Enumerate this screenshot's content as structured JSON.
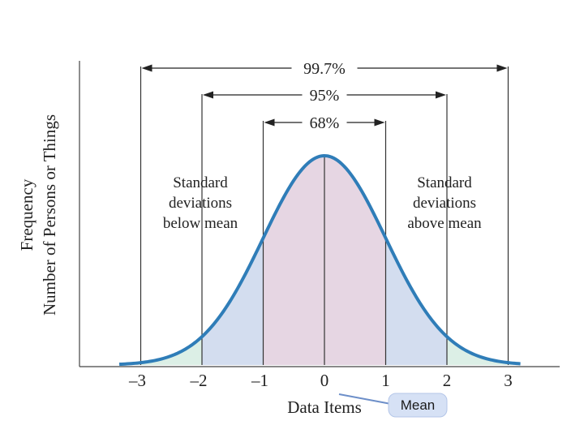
{
  "chart_data": {
    "type": "area",
    "distribution": "normal",
    "x_ticks": [
      "–3",
      "–2",
      "–1",
      "0",
      "1",
      "2",
      "3"
    ],
    "x_tick_values": [
      -3,
      -2,
      -1,
      0,
      1,
      2,
      3
    ],
    "xlim": [
      -3.35,
      3.2
    ],
    "xlabel": "Data Items",
    "ylabel_line1": "Frequency",
    "ylabel_line2": "Number of Persons or Things",
    "intervals": [
      {
        "label": "68%",
        "from": -1,
        "to": 1
      },
      {
        "label": "95%",
        "from": -2,
        "to": 2
      },
      {
        "label": "99.7%",
        "from": -3,
        "to": 3
      }
    ],
    "annotations": {
      "left": [
        "Standard",
        "deviations",
        "below mean"
      ],
      "right": [
        "Standard",
        "deviations",
        "above mean"
      ],
      "mean_label": "Mean"
    },
    "colors": {
      "curve": "#2f7db8",
      "band_1sd": "#e6d6e3",
      "band_2sd": "#d3ddef",
      "band_3sd": "#dcefe6",
      "axis": "#444444"
    }
  }
}
